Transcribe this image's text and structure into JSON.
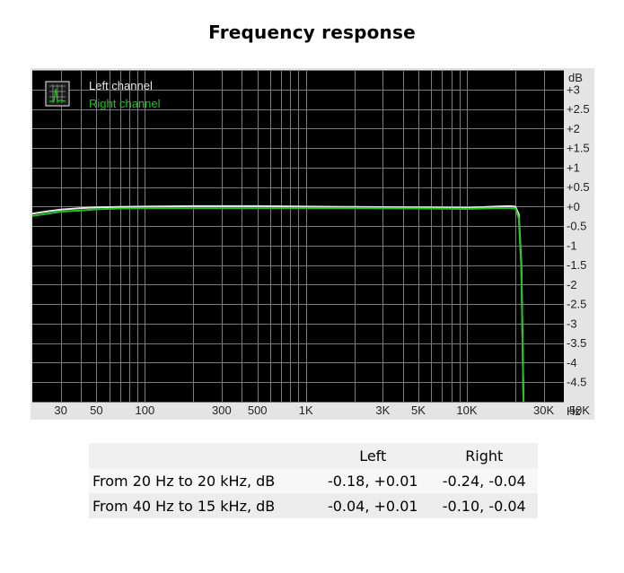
{
  "page": {
    "title": "Frequency response"
  },
  "chart_data": {
    "type": "line",
    "x_scale": "log",
    "xlim": [
      20,
      40000
    ],
    "ylim": [
      -5,
      3.5
    ],
    "x_unit": "Hz",
    "y_unit": "dB",
    "x_tick_labels": [
      {
        "value": 30,
        "label": "30"
      },
      {
        "value": 50,
        "label": "50"
      },
      {
        "value": 100,
        "label": "100"
      },
      {
        "value": 300,
        "label": "300"
      },
      {
        "value": 500,
        "label": "500"
      },
      {
        "value": 1000,
        "label": "1K"
      },
      {
        "value": 3000,
        "label": "3K"
      },
      {
        "value": 5000,
        "label": "5K"
      },
      {
        "value": 10000,
        "label": "10K"
      },
      {
        "value": 30000,
        "label": "30K"
      },
      {
        "value": 50000,
        "label": "50K"
      }
    ],
    "y_tick_labels": [
      {
        "value": 3,
        "label": "+3"
      },
      {
        "value": 2.5,
        "label": "+2.5"
      },
      {
        "value": 2,
        "label": "+2"
      },
      {
        "value": 1.5,
        "label": "+1.5"
      },
      {
        "value": 1,
        "label": "+1"
      },
      {
        "value": 0.5,
        "label": "+0.5"
      },
      {
        "value": 0,
        "label": "+0"
      },
      {
        "value": -0.5,
        "label": "-0.5"
      },
      {
        "value": -1,
        "label": "-1"
      },
      {
        "value": -1.5,
        "label": "-1.5"
      },
      {
        "value": -2,
        "label": "-2"
      },
      {
        "value": -2.5,
        "label": "-2.5"
      },
      {
        "value": -3,
        "label": "-3"
      },
      {
        "value": -3.5,
        "label": "-3.5"
      },
      {
        "value": -4,
        "label": "-4"
      },
      {
        "value": -4.5,
        "label": "-4.5"
      }
    ],
    "grid": true,
    "legend_position": "top-left",
    "background_color": "#000000",
    "grid_color": "#7a7a7a",
    "series": [
      {
        "name": "Left channel",
        "color": "#e8e8e8",
        "points": [
          [
            20,
            -0.18
          ],
          [
            25,
            -0.12
          ],
          [
            30,
            -0.08
          ],
          [
            40,
            -0.04
          ],
          [
            50,
            -0.02
          ],
          [
            70,
            -0.01
          ],
          [
            100,
            0.0
          ],
          [
            200,
            0.01
          ],
          [
            500,
            0.01
          ],
          [
            1000,
            0.0
          ],
          [
            2000,
            -0.01
          ],
          [
            5000,
            -0.02
          ],
          [
            10000,
            -0.03
          ],
          [
            15000,
            0.0
          ],
          [
            18000,
            0.01
          ],
          [
            20000,
            0.0
          ],
          [
            21000,
            -0.2
          ],
          [
            21800,
            -1.5
          ],
          [
            22500,
            -5.2
          ]
        ]
      },
      {
        "name": "Right channel",
        "color": "#22c022",
        "points": [
          [
            20,
            -0.24
          ],
          [
            25,
            -0.18
          ],
          [
            30,
            -0.13
          ],
          [
            40,
            -0.1
          ],
          [
            50,
            -0.07
          ],
          [
            70,
            -0.05
          ],
          [
            100,
            -0.04
          ],
          [
            200,
            -0.04
          ],
          [
            500,
            -0.04
          ],
          [
            1000,
            -0.04
          ],
          [
            2000,
            -0.04
          ],
          [
            5000,
            -0.05
          ],
          [
            10000,
            -0.06
          ],
          [
            15000,
            -0.04
          ],
          [
            18000,
            -0.04
          ],
          [
            20000,
            -0.05
          ],
          [
            21000,
            -0.3
          ],
          [
            21800,
            -1.6
          ],
          [
            22500,
            -5.2
          ]
        ]
      }
    ]
  },
  "table": {
    "headers": [
      "",
      "Left",
      "Right"
    ],
    "rows": [
      {
        "label": "From 20 Hz to 20 kHz, dB",
        "left": "-0.18, +0.01",
        "right": "-0.24, -0.04"
      },
      {
        "label": "From 40 Hz to 15 kHz, dB",
        "left": "-0.04, +0.01",
        "right": "-0.10, -0.04"
      }
    ]
  }
}
